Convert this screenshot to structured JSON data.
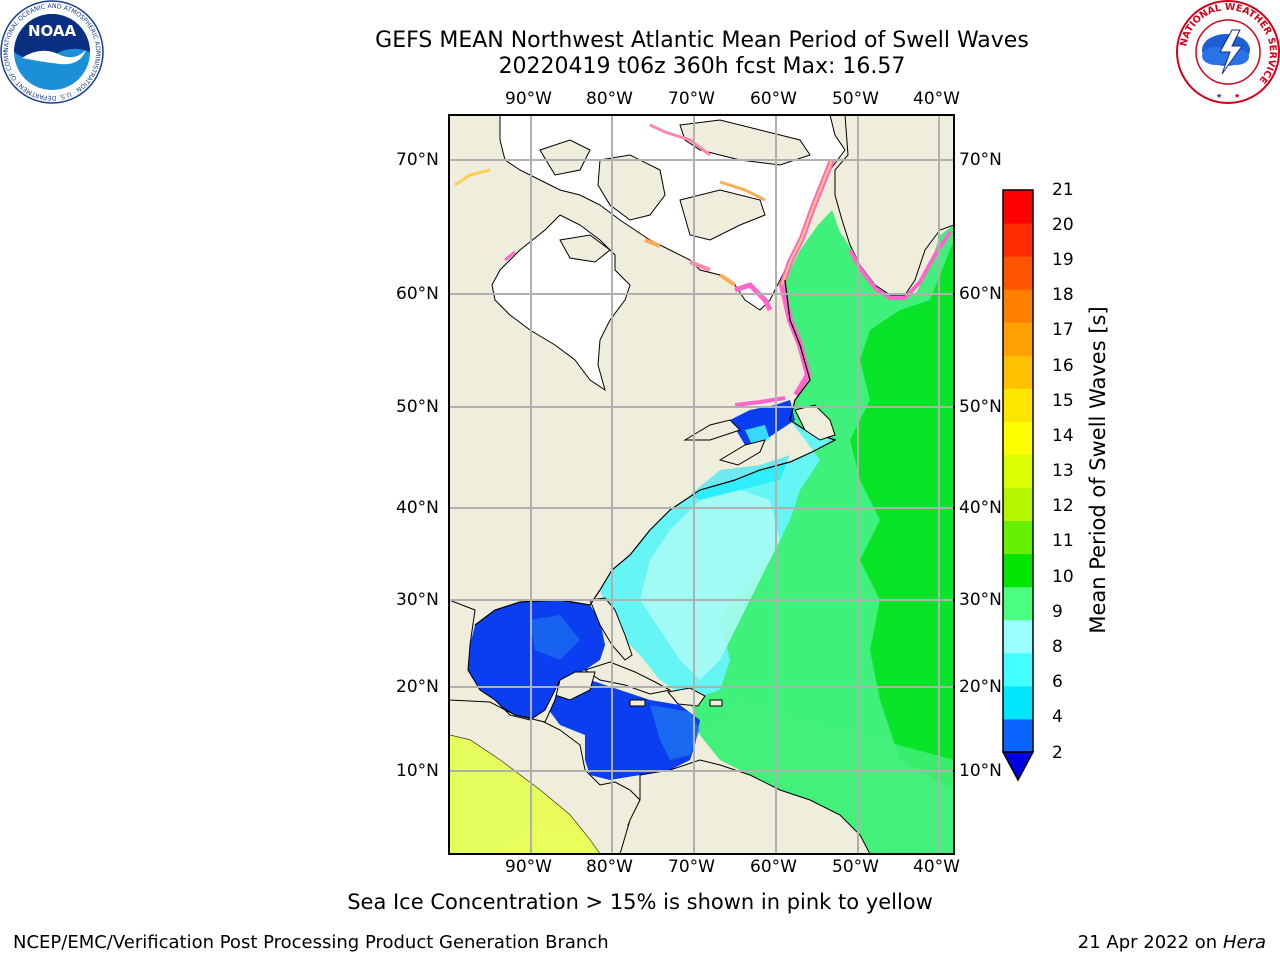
{
  "title_line1": "GEFS MEAN Northwest Atlantic Mean Period of Swell Waves",
  "title_line2": "20220419 t06z 360h fcst   Max: 16.57",
  "map": {
    "lon_labels": [
      "90°W",
      "80°W",
      "70°W",
      "60°W",
      "50°W",
      "40°W"
    ],
    "lat_labels": [
      "70°N",
      "60°N",
      "50°N",
      "40°N",
      "30°N",
      "20°N",
      "10°N"
    ],
    "lon_range": [
      -100,
      -38
    ],
    "lat_range": [
      2,
      74
    ],
    "projection": "mercator",
    "grid": true,
    "land_color": "#efeddc",
    "ice_color": "#ffffff"
  },
  "colorbar": {
    "label": "Mean Period of Swell Waves [s]",
    "ticks": [
      "21",
      "20",
      "19",
      "18",
      "17",
      "16",
      "15",
      "14",
      "13",
      "12",
      "11",
      "10",
      "9",
      "8",
      "6",
      "4",
      "2"
    ],
    "colors_bottom_to_top": [
      "#0a64ff",
      "#00e6ff",
      "#44ffff",
      "#99ffff",
      "#4dff80",
      "#00e600",
      "#64f000",
      "#b4f500",
      "#dcff00",
      "#ffff00",
      "#ffe600",
      "#ffc000",
      "#ffa000",
      "#ff8000",
      "#ff5500",
      "#ff2a00",
      "#ff0000"
    ],
    "under_color": "#0000e6"
  },
  "annotation": "Sea Ice Concentration > 15% is shown in pink to yellow",
  "footer_left": "NCEP/EMC/Verification Post Processing Product Generation Branch",
  "footer_right_date": "21 Apr 2022 on ",
  "footer_right_host": "Hera",
  "logos": {
    "noaa_text": "NOAA",
    "noaa_ring_text": "NATIONAL OCEANIC AND ATMOSPHERIC ADMINISTRATION · U.S. DEPARTMENT OF COMMERCE",
    "nws_ring_text": "NATIONAL WEATHER SERVICE"
  }
}
